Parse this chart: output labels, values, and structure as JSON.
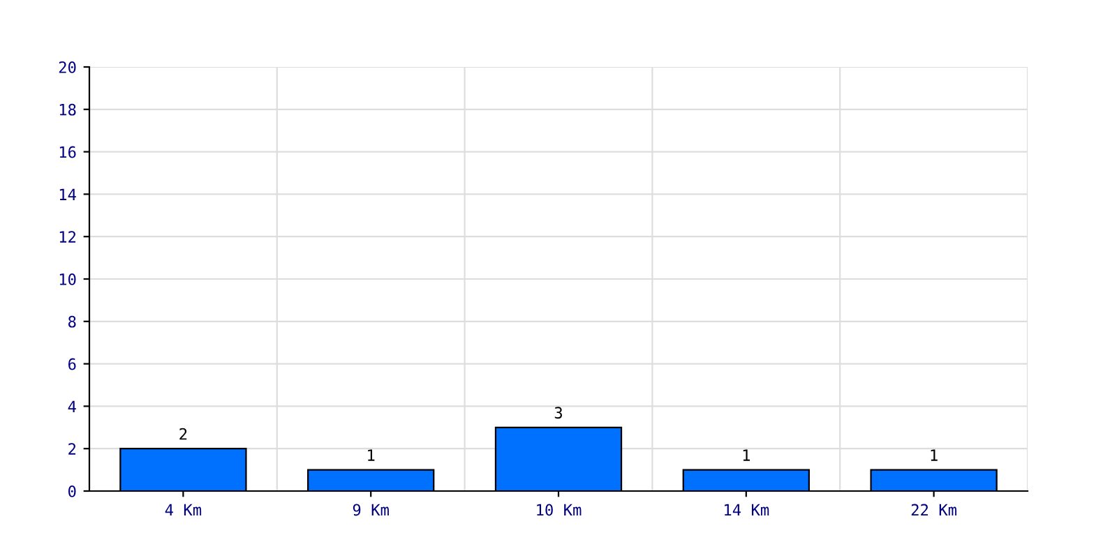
{
  "chart_data": {
    "type": "bar",
    "categories": [
      "4 Km",
      "9 Km",
      "10 Km",
      "14 Km",
      "22 Km"
    ],
    "values": [
      2,
      1,
      3,
      1,
      1
    ],
    "color": "#0070ff",
    "ylim": [
      0,
      20
    ],
    "yticks": [
      0,
      2,
      4,
      6,
      8,
      10,
      12,
      14,
      16,
      18,
      20
    ],
    "grid": true,
    "data_labels": true
  }
}
